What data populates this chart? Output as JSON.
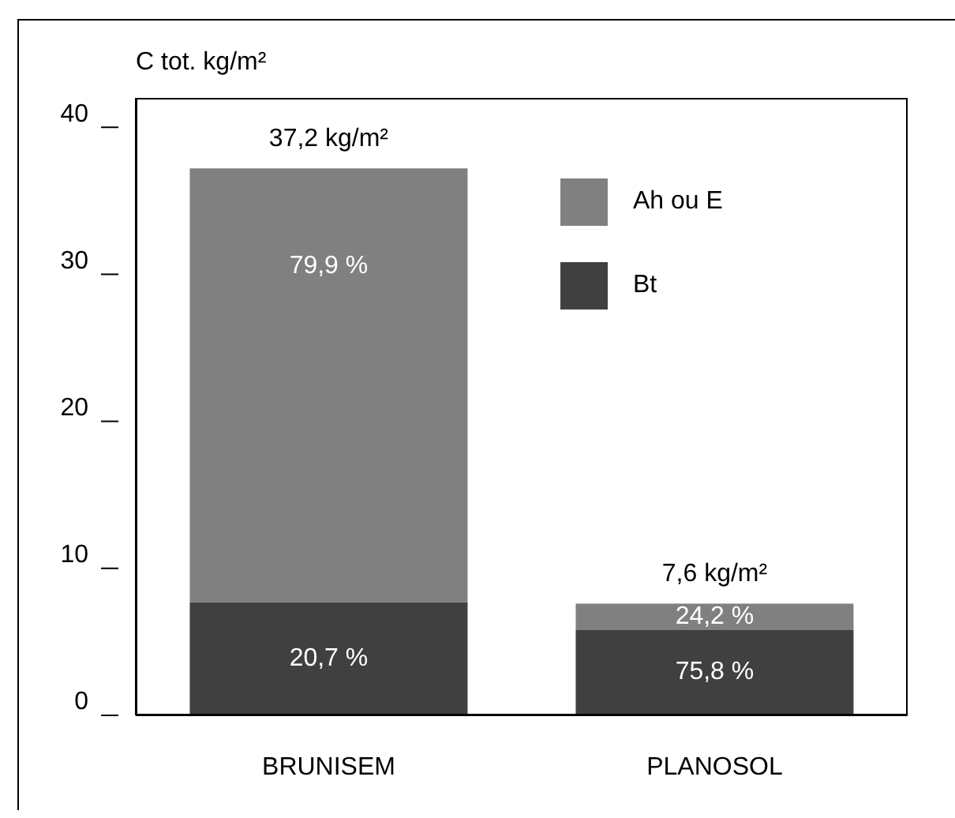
{
  "chart_data": {
    "type": "bar",
    "ylabel": "C tot. kg/m²",
    "categories": [
      "BRUNISEM",
      "PLANOSOL"
    ],
    "stacked": true,
    "series": [
      {
        "name": "Bt",
        "color": "#404040",
        "values": [
          7.7,
          5.8
        ]
      },
      {
        "name": "Ah ou E",
        "color": "#808080",
        "values": [
          29.5,
          1.8
        ]
      }
    ],
    "annotations": [
      "20,7 %",
      "75,8 %",
      "79,9 %",
      "24,2 %"
    ],
    "totals": [
      "37,2 kg/m²",
      "7,6 kg/m²"
    ],
    "ylim": [
      0,
      42
    ],
    "yticks": [
      0,
      10,
      20,
      30,
      40
    ],
    "grid": false,
    "legend": "top right"
  }
}
